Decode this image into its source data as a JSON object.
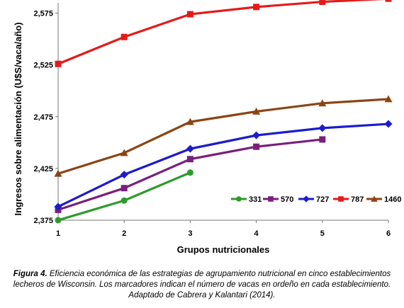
{
  "chart_data": {
    "type": "line",
    "xlabel": "Grupos nutricionales",
    "ylabel": "Ingresos sobre alimentación (U$S/vaca/año)",
    "x": [
      1,
      2,
      3,
      4,
      5,
      6
    ],
    "xticks": [
      "1",
      "2",
      "3",
      "4",
      "5",
      "6"
    ],
    "yticks": [
      2375,
      2425,
      2475,
      2525,
      2575
    ],
    "ytick_labels": [
      "2,375",
      "2,425",
      "2,475",
      "2,525",
      "2,575"
    ],
    "ylim": [
      2375,
      2585
    ],
    "xlim": [
      1,
      6
    ],
    "grid": false,
    "legend_position": "bottom-right",
    "series": [
      {
        "name": "331",
        "color": "#2e9a2e",
        "marker": "circle",
        "x": [
          1,
          2,
          3
        ],
        "values": [
          2375,
          2394,
          2421
        ]
      },
      {
        "name": "570",
        "color": "#7a1f7a",
        "marker": "square",
        "x": [
          1,
          2,
          3,
          4,
          5
        ],
        "values": [
          2385,
          2406,
          2434,
          2446,
          2453
        ]
      },
      {
        "name": "727",
        "color": "#1c1ccc",
        "marker": "diamond",
        "x": [
          1,
          2,
          3,
          4,
          5,
          6
        ],
        "values": [
          2388,
          2419,
          2444,
          2457,
          2464,
          2468
        ]
      },
      {
        "name": "787",
        "color": "#e41a1a",
        "marker": "square",
        "x": [
          1,
          2,
          3,
          4,
          5,
          6
        ],
        "values": [
          2526,
          2552,
          2574,
          2581,
          2586,
          2589
        ]
      },
      {
        "name": "1460",
        "color": "#8b4513",
        "marker": "triangle",
        "x": [
          1,
          2,
          3,
          4,
          5,
          6
        ],
        "values": [
          2420,
          2440,
          2470,
          2480,
          2488,
          2492
        ]
      }
    ]
  },
  "caption": {
    "label": "Figura 4.",
    "text": "Eficiencia económica de las estrategias de agrupamiento nutricional en cinco establecimientos lecheros de Wisconsin. Los marcadores indican el número de vacas en ordeño en cada establecimiento. Adaptado de Cabrera y Kalantari (2014)."
  }
}
